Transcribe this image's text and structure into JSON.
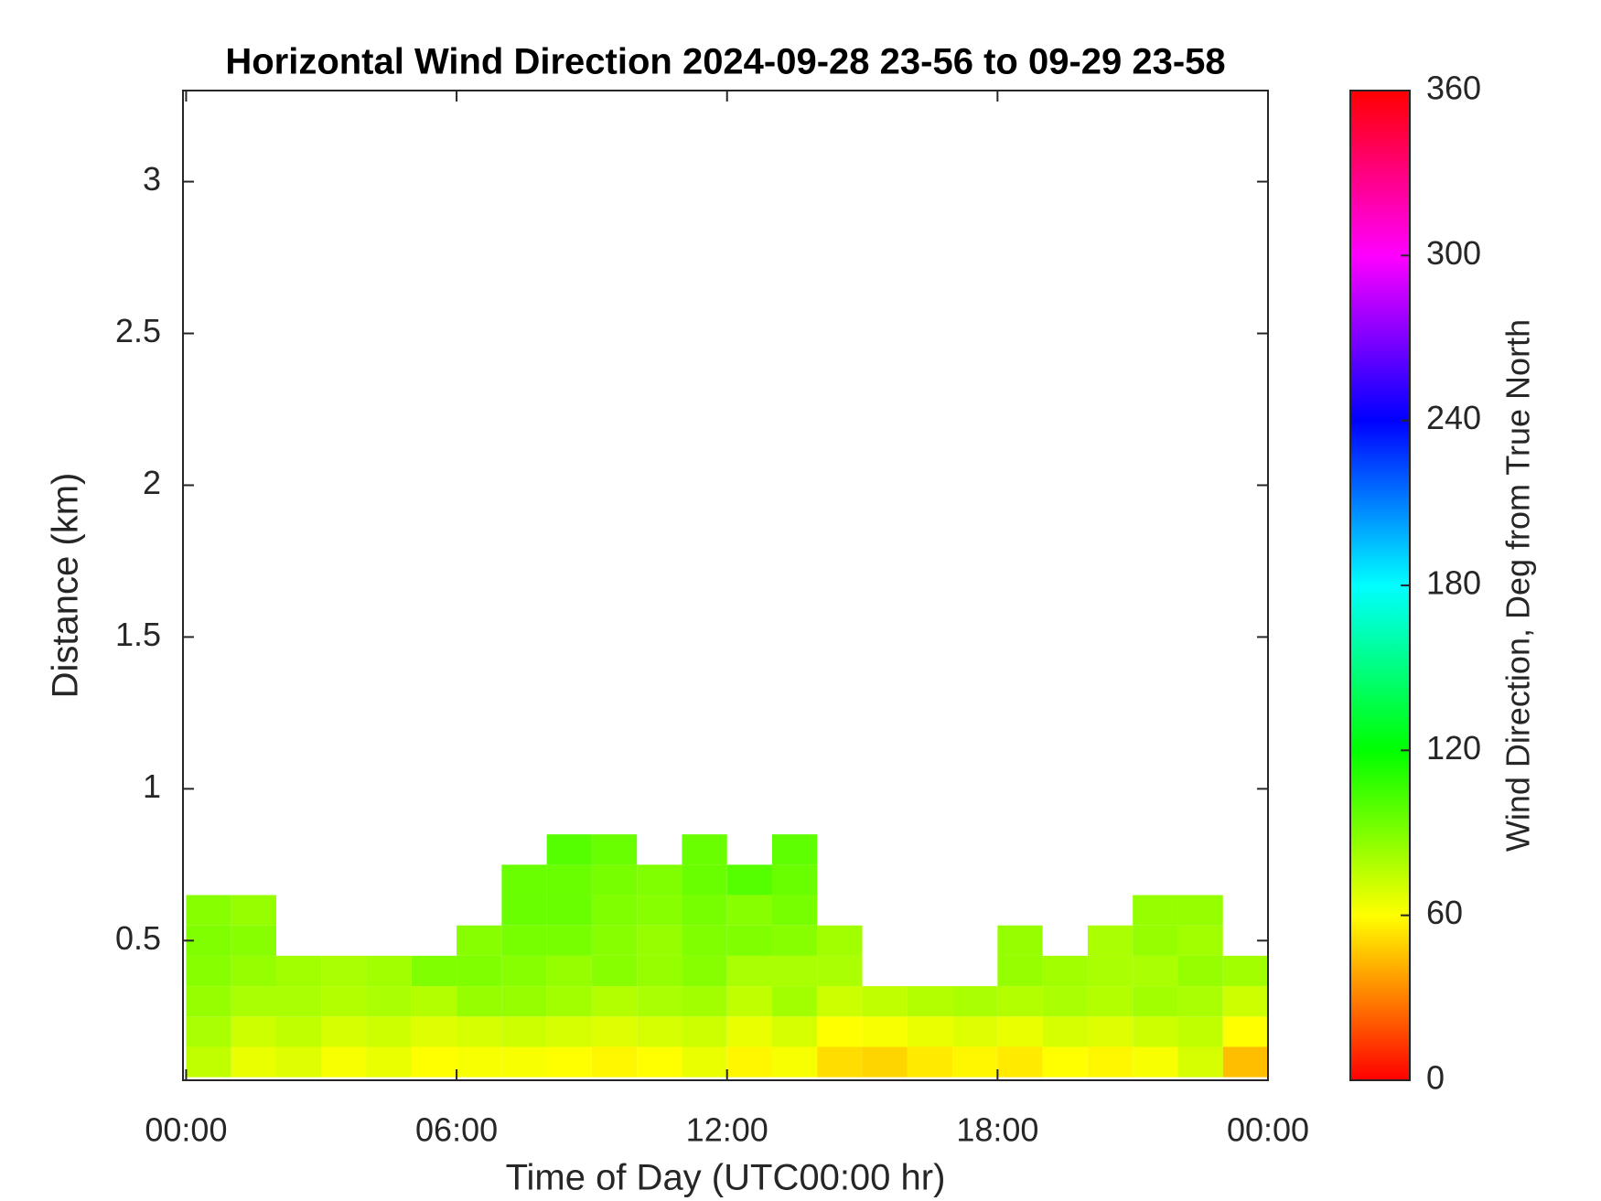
{
  "chart_data": {
    "type": "heatmap",
    "title": "Horizontal Wind Direction 2024-09-28 23-56 to 09-29 23-58",
    "x_label": "Time of Day (UTC00:00 hr)",
    "y_label": "Distance (km)",
    "colorbar_label": "Wind Direction, Deg from True North",
    "colormap": "hsv",
    "x": [
      0.5,
      1.5,
      2.5,
      3.5,
      4.5,
      5.5,
      6.5,
      7.5,
      8.5,
      9.5,
      10.5,
      11.5,
      12.5,
      13.5,
      14.5,
      15.5,
      16.5,
      17.5,
      18.5,
      19.5,
      20.5,
      21.5,
      22.5,
      23.5
    ],
    "y": [
      0.1,
      0.2,
      0.3,
      0.4,
      0.5,
      0.6,
      0.7,
      0.8
    ],
    "z": [
      [
        75,
        65,
        68,
        62,
        65,
        60,
        62,
        62,
        60,
        58,
        60,
        65,
        58,
        62,
        52,
        50,
        55,
        58,
        55,
        60,
        58,
        62,
        70,
        45
      ],
      [
        80,
        72,
        75,
        70,
        72,
        68,
        70,
        72,
        70,
        68,
        70,
        72,
        65,
        70,
        60,
        62,
        65,
        68,
        65,
        70,
        68,
        72,
        75,
        60
      ],
      [
        85,
        80,
        80,
        78,
        80,
        78,
        85,
        85,
        82,
        78,
        80,
        82,
        75,
        82,
        72,
        75,
        78,
        80,
        78,
        80,
        78,
        82,
        80,
        72
      ],
      [
        88,
        85,
        82,
        80,
        82,
        90,
        90,
        88,
        85,
        88,
        85,
        88,
        80,
        80,
        80,
        null,
        null,
        null,
        85,
        82,
        80,
        80,
        85,
        82
      ],
      [
        90,
        88,
        null,
        null,
        null,
        null,
        88,
        92,
        92,
        88,
        85,
        90,
        90,
        88,
        82,
        null,
        null,
        null,
        85,
        null,
        80,
        85,
        82,
        null
      ],
      [
        88,
        85,
        null,
        null,
        null,
        null,
        null,
        95,
        95,
        90,
        88,
        92,
        88,
        92,
        null,
        null,
        null,
        null,
        null,
        null,
        null,
        85,
        85,
        null
      ],
      [
        null,
        null,
        null,
        null,
        null,
        null,
        null,
        95,
        95,
        92,
        90,
        95,
        100,
        95,
        null,
        null,
        null,
        null,
        null,
        null,
        null,
        null,
        null,
        null
      ],
      [
        null,
        null,
        null,
        null,
        null,
        null,
        null,
        null,
        100,
        95,
        null,
        95,
        null,
        98,
        null,
        null,
        null,
        null,
        null,
        null,
        null,
        null,
        null,
        null
      ]
    ],
    "xlim": [
      -0.07,
      24
    ],
    "ylim": [
      0.04,
      3.3
    ],
    "zlim": [
      0,
      360
    ],
    "xticks": [
      {
        "value": 0,
        "label": "00:00"
      },
      {
        "value": 6,
        "label": "06:00"
      },
      {
        "value": 12,
        "label": "12:00"
      },
      {
        "value": 18,
        "label": "18:00"
      },
      {
        "value": 24,
        "label": "00:00"
      }
    ],
    "yticks": [
      0.5,
      1,
      1.5,
      2,
      2.5,
      3
    ],
    "zticks": [
      0,
      60,
      120,
      180,
      240,
      300,
      360
    ],
    "grid": false
  }
}
